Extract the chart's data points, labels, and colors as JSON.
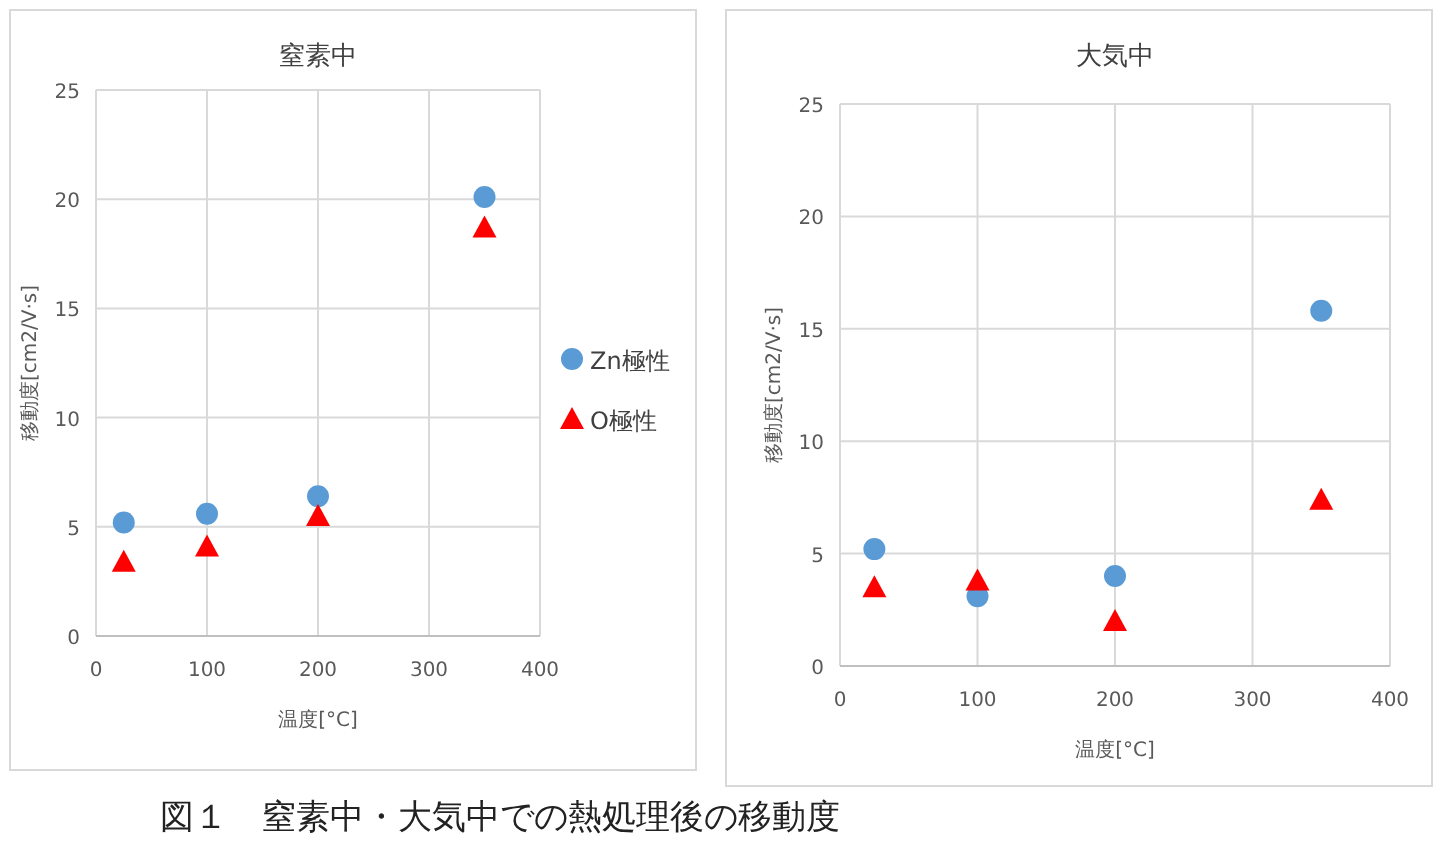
{
  "chart_data": [
    {
      "type": "scatter",
      "title": "窒素中",
      "xlabel": "温度[°C]",
      "ylabel": "移動度[cm2/V·s]",
      "x": [
        25,
        100,
        200,
        350
      ],
      "xlim": [
        0,
        400
      ],
      "ylim": [
        0,
        25
      ],
      "xticks": [
        0,
        100,
        200,
        300,
        400
      ],
      "yticks": [
        0,
        5,
        10,
        15,
        20,
        25
      ],
      "grid": true,
      "legend": "right",
      "series": [
        {
          "name": "Zn極性",
          "color": "#5b9bd5",
          "marker": "circle",
          "values": [
            5.2,
            5.6,
            6.4,
            20.1
          ]
        },
        {
          "name": "O極性",
          "color": "#ff0000",
          "marker": "triangle",
          "values": [
            3.4,
            4.1,
            5.5,
            18.7
          ]
        }
      ],
      "annotations": [
        "図１　窒素中・大気中での熱処理後の移動度"
      ]
    },
    {
      "type": "scatter",
      "title": "大気中",
      "xlabel": "温度[°C]",
      "ylabel": "移動度[cm2/V·s]",
      "x": [
        25,
        100,
        200,
        350
      ],
      "xlim": [
        0,
        400
      ],
      "ylim": [
        0,
        25
      ],
      "xticks": [
        0,
        100,
        200,
        300,
        400
      ],
      "yticks": [
        0,
        5,
        10,
        15,
        20,
        25
      ],
      "grid": true,
      "series": [
        {
          "color": "#5b9bd5",
          "marker": "circle",
          "values": [
            5.2,
            3.1,
            4.0,
            15.8
          ]
        },
        {
          "color": "#ff0000",
          "marker": "triangle",
          "values": [
            3.5,
            3.8,
            2.0,
            7.4
          ]
        }
      ]
    }
  ]
}
